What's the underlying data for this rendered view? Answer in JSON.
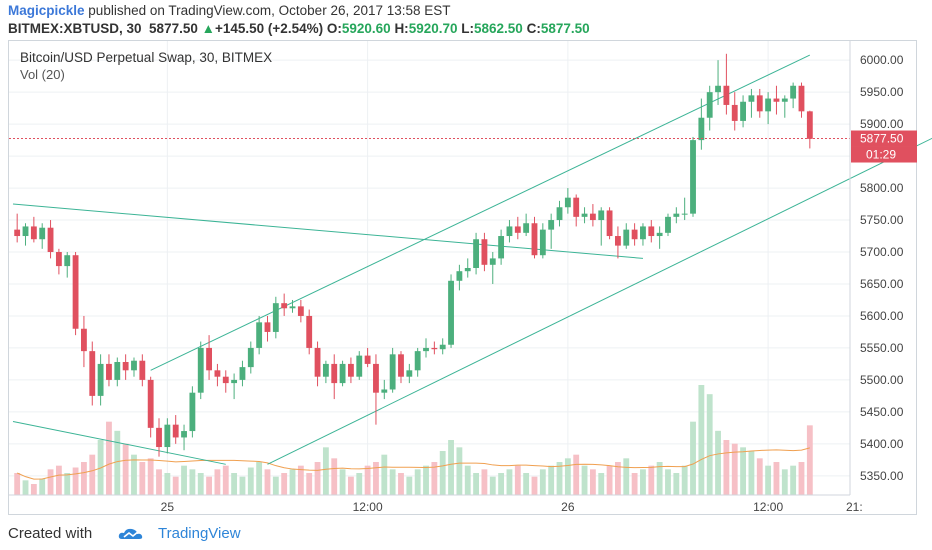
{
  "header": {
    "author": "Magicpickle",
    "published_text": "published on TradingView.com, October 26, 2017 13:58 EST",
    "symbol": "BITMEX:XBTUSD, 30",
    "last": "5877.50",
    "change_arrow": "▲",
    "change": "+145.50 (+2.54%)",
    "o_label": "O:",
    "o_value": "5920.60",
    "h_label": "H:",
    "h_value": "5920.70",
    "l_label": "L:",
    "l_value": "5862.50",
    "c_label": "C:",
    "c_value": "5877.50"
  },
  "legend": {
    "title": "Bitcoin/USD Perpetual Swap, 30, BITMEX",
    "volume": "Vol (20)"
  },
  "footer": {
    "created_with": "Created with",
    "brand": "TradingView",
    "brand_icon": "tradingview-cloud-icon"
  },
  "colors": {
    "up": "#4caf7d",
    "down": "#e0505f",
    "vol_up": "#bfe3cc",
    "vol_down": "#f6c0c6",
    "trendline": "#3cb496",
    "vol_ma": "#f0a050",
    "price_line": "#e0505f",
    "grid": "#edf0f3"
  },
  "chart_data": {
    "type": "candlestick",
    "ylim": [
      5320,
      6030
    ],
    "y_ticks": [
      "6000.00",
      "5950.00",
      "5900.00",
      "5850.00",
      "5800.00",
      "5750.00",
      "5700.00",
      "5650.00",
      "5600.00",
      "5550.00",
      "5500.00",
      "5450.00",
      "5400.00",
      "5350.00"
    ],
    "x_ticks": [
      "25",
      "12:00",
      "26",
      "12:00",
      "21:"
    ],
    "last_price_label": "5877.50",
    "countdown": "01:29",
    "candles": [
      {
        "o": 5735,
        "h": 5760,
        "l": 5715,
        "c": 5725
      },
      {
        "o": 5725,
        "h": 5745,
        "l": 5710,
        "c": 5740
      },
      {
        "o": 5740,
        "h": 5755,
        "l": 5715,
        "c": 5720
      },
      {
        "o": 5720,
        "h": 5745,
        "l": 5705,
        "c": 5738
      },
      {
        "o": 5738,
        "h": 5750,
        "l": 5690,
        "c": 5700
      },
      {
        "o": 5700,
        "h": 5705,
        "l": 5665,
        "c": 5678
      },
      {
        "o": 5678,
        "h": 5700,
        "l": 5660,
        "c": 5695
      },
      {
        "o": 5695,
        "h": 5700,
        "l": 5570,
        "c": 5580
      },
      {
        "o": 5580,
        "h": 5600,
        "l": 5520,
        "c": 5545
      },
      {
        "o": 5545,
        "h": 5560,
        "l": 5460,
        "c": 5475
      },
      {
        "o": 5475,
        "h": 5540,
        "l": 5460,
        "c": 5525
      },
      {
        "o": 5525,
        "h": 5540,
        "l": 5490,
        "c": 5500
      },
      {
        "o": 5500,
        "h": 5535,
        "l": 5490,
        "c": 5528
      },
      {
        "o": 5528,
        "h": 5540,
        "l": 5500,
        "c": 5515
      },
      {
        "o": 5515,
        "h": 5535,
        "l": 5505,
        "c": 5530
      },
      {
        "o": 5530,
        "h": 5540,
        "l": 5490,
        "c": 5500
      },
      {
        "o": 5500,
        "h": 5505,
        "l": 5410,
        "c": 5425
      },
      {
        "o": 5425,
        "h": 5440,
        "l": 5380,
        "c": 5395
      },
      {
        "o": 5395,
        "h": 5440,
        "l": 5385,
        "c": 5430
      },
      {
        "o": 5430,
        "h": 5445,
        "l": 5400,
        "c": 5410
      },
      {
        "o": 5410,
        "h": 5430,
        "l": 5390,
        "c": 5420
      },
      {
        "o": 5420,
        "h": 5490,
        "l": 5410,
        "c": 5480
      },
      {
        "o": 5480,
        "h": 5560,
        "l": 5470,
        "c": 5550
      },
      {
        "o": 5550,
        "h": 5570,
        "l": 5500,
        "c": 5515
      },
      {
        "o": 5515,
        "h": 5525,
        "l": 5490,
        "c": 5505
      },
      {
        "o": 5505,
        "h": 5515,
        "l": 5480,
        "c": 5495
      },
      {
        "o": 5495,
        "h": 5510,
        "l": 5470,
        "c": 5500
      },
      {
        "o": 5500,
        "h": 5530,
        "l": 5490,
        "c": 5520
      },
      {
        "o": 5520,
        "h": 5560,
        "l": 5510,
        "c": 5550
      },
      {
        "o": 5550,
        "h": 5600,
        "l": 5540,
        "c": 5590
      },
      {
        "o": 5590,
        "h": 5600,
        "l": 5560,
        "c": 5575
      },
      {
        "o": 5575,
        "h": 5630,
        "l": 5565,
        "c": 5620
      },
      {
        "o": 5620,
        "h": 5635,
        "l": 5600,
        "c": 5612
      },
      {
        "o": 5612,
        "h": 5625,
        "l": 5605,
        "c": 5615
      },
      {
        "o": 5615,
        "h": 5625,
        "l": 5590,
        "c": 5600
      },
      {
        "o": 5600,
        "h": 5610,
        "l": 5540,
        "c": 5550
      },
      {
        "o": 5550,
        "h": 5560,
        "l": 5490,
        "c": 5505
      },
      {
        "o": 5505,
        "h": 5530,
        "l": 5495,
        "c": 5525
      },
      {
        "o": 5525,
        "h": 5540,
        "l": 5470,
        "c": 5495
      },
      {
        "o": 5495,
        "h": 5530,
        "l": 5490,
        "c": 5525
      },
      {
        "o": 5525,
        "h": 5535,
        "l": 5495,
        "c": 5505
      },
      {
        "o": 5505,
        "h": 5545,
        "l": 5500,
        "c": 5538
      },
      {
        "o": 5538,
        "h": 5550,
        "l": 5520,
        "c": 5525
      },
      {
        "o": 5525,
        "h": 5540,
        "l": 5430,
        "c": 5480
      },
      {
        "o": 5480,
        "h": 5500,
        "l": 5470,
        "c": 5485
      },
      {
        "o": 5485,
        "h": 5550,
        "l": 5480,
        "c": 5540
      },
      {
        "o": 5540,
        "h": 5545,
        "l": 5495,
        "c": 5505
      },
      {
        "o": 5505,
        "h": 5525,
        "l": 5495,
        "c": 5515
      },
      {
        "o": 5515,
        "h": 5550,
        "l": 5505,
        "c": 5545
      },
      {
        "o": 5545,
        "h": 5565,
        "l": 5535,
        "c": 5550
      },
      {
        "o": 5550,
        "h": 5560,
        "l": 5540,
        "c": 5548
      },
      {
        "o": 5548,
        "h": 5565,
        "l": 5540,
        "c": 5555
      },
      {
        "o": 5555,
        "h": 5665,
        "l": 5550,
        "c": 5655
      },
      {
        "o": 5655,
        "h": 5680,
        "l": 5640,
        "c": 5670
      },
      {
        "o": 5670,
        "h": 5690,
        "l": 5660,
        "c": 5675
      },
      {
        "o": 5675,
        "h": 5730,
        "l": 5665,
        "c": 5720
      },
      {
        "o": 5720,
        "h": 5730,
        "l": 5670,
        "c": 5680
      },
      {
        "o": 5680,
        "h": 5700,
        "l": 5650,
        "c": 5690
      },
      {
        "o": 5690,
        "h": 5735,
        "l": 5680,
        "c": 5725
      },
      {
        "o": 5725,
        "h": 5750,
        "l": 5715,
        "c": 5740
      },
      {
        "o": 5740,
        "h": 5755,
        "l": 5720,
        "c": 5730
      },
      {
        "o": 5730,
        "h": 5760,
        "l": 5725,
        "c": 5745
      },
      {
        "o": 5745,
        "h": 5755,
        "l": 5690,
        "c": 5695
      },
      {
        "o": 5695,
        "h": 5745,
        "l": 5690,
        "c": 5735
      },
      {
        "o": 5735,
        "h": 5760,
        "l": 5705,
        "c": 5750
      },
      {
        "o": 5750,
        "h": 5780,
        "l": 5740,
        "c": 5770
      },
      {
        "o": 5770,
        "h": 5800,
        "l": 5760,
        "c": 5785
      },
      {
        "o": 5785,
        "h": 5790,
        "l": 5740,
        "c": 5755
      },
      {
        "o": 5755,
        "h": 5770,
        "l": 5745,
        "c": 5760
      },
      {
        "o": 5760,
        "h": 5775,
        "l": 5740,
        "c": 5750
      },
      {
        "o": 5750,
        "h": 5770,
        "l": 5710,
        "c": 5765
      },
      {
        "o": 5765,
        "h": 5770,
        "l": 5720,
        "c": 5725
      },
      {
        "o": 5725,
        "h": 5740,
        "l": 5690,
        "c": 5710
      },
      {
        "o": 5710,
        "h": 5745,
        "l": 5705,
        "c": 5735
      },
      {
        "o": 5735,
        "h": 5745,
        "l": 5710,
        "c": 5720
      },
      {
        "o": 5720,
        "h": 5745,
        "l": 5710,
        "c": 5740
      },
      {
        "o": 5740,
        "h": 5750,
        "l": 5715,
        "c": 5725
      },
      {
        "o": 5725,
        "h": 5740,
        "l": 5705,
        "c": 5730
      },
      {
        "o": 5730,
        "h": 5760,
        "l": 5725,
        "c": 5755
      },
      {
        "o": 5755,
        "h": 5770,
        "l": 5745,
        "c": 5760
      },
      {
        "o": 5760,
        "h": 5785,
        "l": 5750,
        "c": 5760
      },
      {
        "o": 5760,
        "h": 5880,
        "l": 5755,
        "c": 5875
      },
      {
        "o": 5875,
        "h": 5940,
        "l": 5860,
        "c": 5910
      },
      {
        "o": 5910,
        "h": 5960,
        "l": 5890,
        "c": 5950
      },
      {
        "o": 5950,
        "h": 6000,
        "l": 5930,
        "c": 5960
      },
      {
        "o": 5960,
        "h": 6010,
        "l": 5915,
        "c": 5930
      },
      {
        "o": 5930,
        "h": 5950,
        "l": 5890,
        "c": 5905
      },
      {
        "o": 5905,
        "h": 5945,
        "l": 5895,
        "c": 5935
      },
      {
        "o": 5935,
        "h": 5955,
        "l": 5910,
        "c": 5945
      },
      {
        "o": 5945,
        "h": 5955,
        "l": 5910,
        "c": 5920
      },
      {
        "o": 5920,
        "h": 5950,
        "l": 5900,
        "c": 5940
      },
      {
        "o": 5940,
        "h": 5960,
        "l": 5915,
        "c": 5935
      },
      {
        "o": 5935,
        "h": 5945,
        "l": 5910,
        "c": 5940
      },
      {
        "o": 5940,
        "h": 5965,
        "l": 5925,
        "c": 5960
      },
      {
        "o": 5960,
        "h": 5965,
        "l": 5910,
        "c": 5920
      },
      {
        "o": 5920,
        "h": 5921,
        "l": 5862,
        "c": 5877
      }
    ],
    "volume": [
      12,
      8,
      6,
      9,
      14,
      16,
      12,
      15,
      18,
      22,
      30,
      40,
      35,
      28,
      22,
      18,
      20,
      14,
      12,
      10,
      16,
      14,
      12,
      10,
      14,
      16,
      12,
      10,
      15,
      18,
      14,
      10,
      12,
      14,
      16,
      12,
      18,
      26,
      20,
      14,
      10,
      12,
      16,
      18,
      22,
      14,
      12,
      10,
      14,
      16,
      18,
      24,
      30,
      26,
      16,
      12,
      14,
      10,
      12,
      14,
      16,
      12,
      10,
      14,
      16,
      18,
      20,
      22,
      16,
      14,
      12,
      16,
      18,
      20,
      12,
      14,
      16,
      18,
      14,
      12,
      16,
      40,
      60,
      55,
      35,
      30,
      28,
      26,
      24,
      20,
      16,
      18,
      14,
      16,
      18,
      38
    ]
  }
}
